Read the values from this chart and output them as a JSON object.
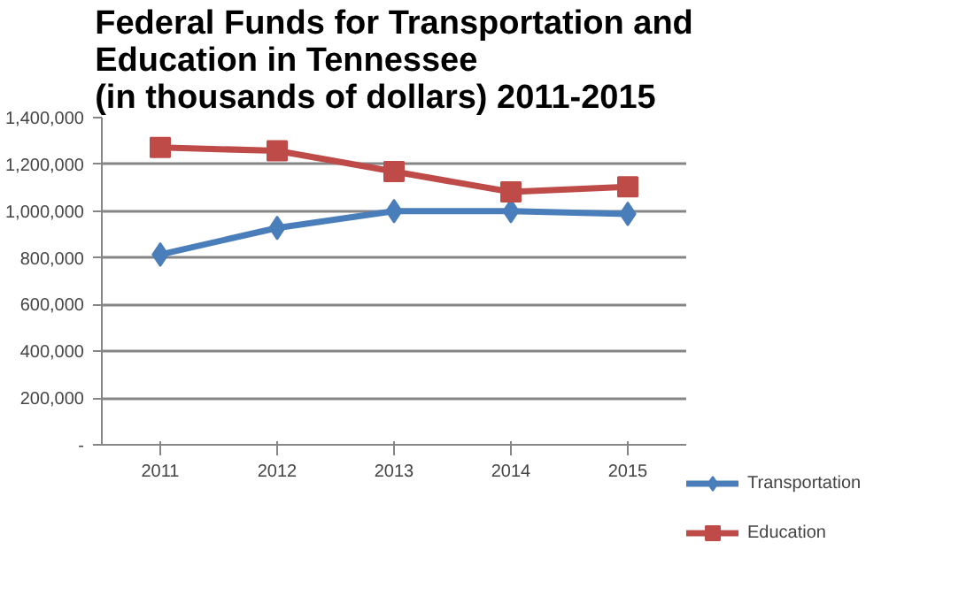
{
  "chart_data": {
    "type": "line",
    "title": "Federal Funds for Transportation and\nEducation in Tennessee\n(in thousands of dollars) 2011-2015",
    "categories": [
      "2011",
      "2012",
      "2013",
      "2014",
      "2015"
    ],
    "series": [
      {
        "name": "Transportation",
        "color": "#4a7ebb",
        "marker": "diamond",
        "values": [
          814000,
          928000,
          1000000,
          1000000,
          988000
        ]
      },
      {
        "name": "Education",
        "color": "#be4b48",
        "marker": "square",
        "values": [
          1272000,
          1258000,
          1169000,
          1082000,
          1104000
        ]
      }
    ],
    "ylim": [
      0,
      1400000
    ],
    "yticks": [
      {
        "value": 0,
        "label": "-"
      },
      {
        "value": 200000,
        "label": "200,000"
      },
      {
        "value": 400000,
        "label": "400,000"
      },
      {
        "value": 600000,
        "label": "600,000"
      },
      {
        "value": 800000,
        "label": "800,000"
      },
      {
        "value": 1000000,
        "label": "1,000,000"
      },
      {
        "value": 1200000,
        "label": "1,200,000"
      },
      {
        "value": 1400000,
        "label": "1,400,000"
      }
    ],
    "grid": "y",
    "legend": "right",
    "line_style": "solid"
  }
}
